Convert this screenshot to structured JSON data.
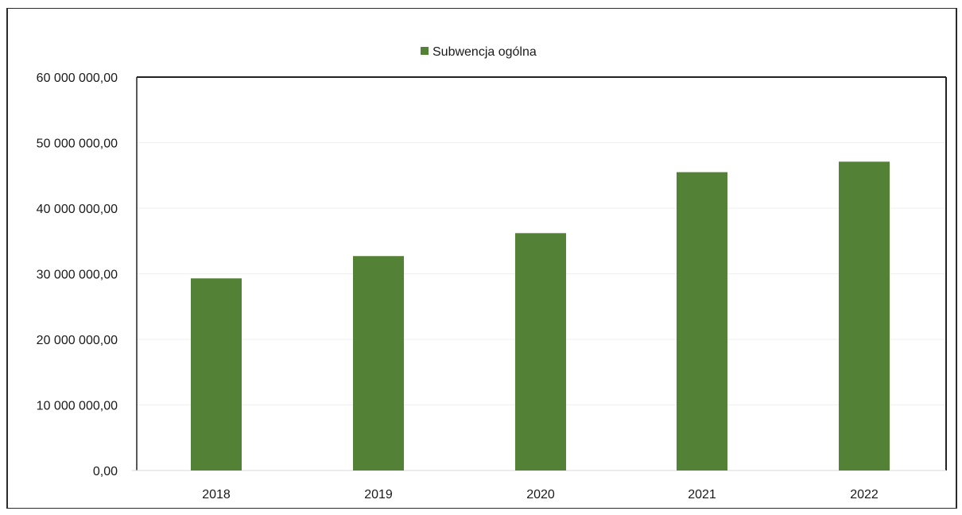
{
  "chart_data": {
    "type": "bar",
    "title": "",
    "xlabel": "",
    "ylabel": "",
    "categories": [
      "2018",
      "2019",
      "2020",
      "2021",
      "2022"
    ],
    "series": [
      {
        "name": "Subwencja ogólna",
        "values": [
          29300000,
          32700000,
          36200000,
          45500000,
          47100000
        ],
        "color": "#538135"
      }
    ],
    "ylim": [
      0,
      60000000
    ],
    "yticks": [
      0,
      10000000,
      20000000,
      30000000,
      40000000,
      50000000,
      60000000
    ],
    "ytick_labels": [
      "0,00",
      "10 000 000,00",
      "20 000 000,00",
      "30 000 000,00",
      "40 000 000,00",
      "50 000 000,00",
      "60 000 000,00"
    ],
    "legend_position": "top-center",
    "grid": true
  }
}
